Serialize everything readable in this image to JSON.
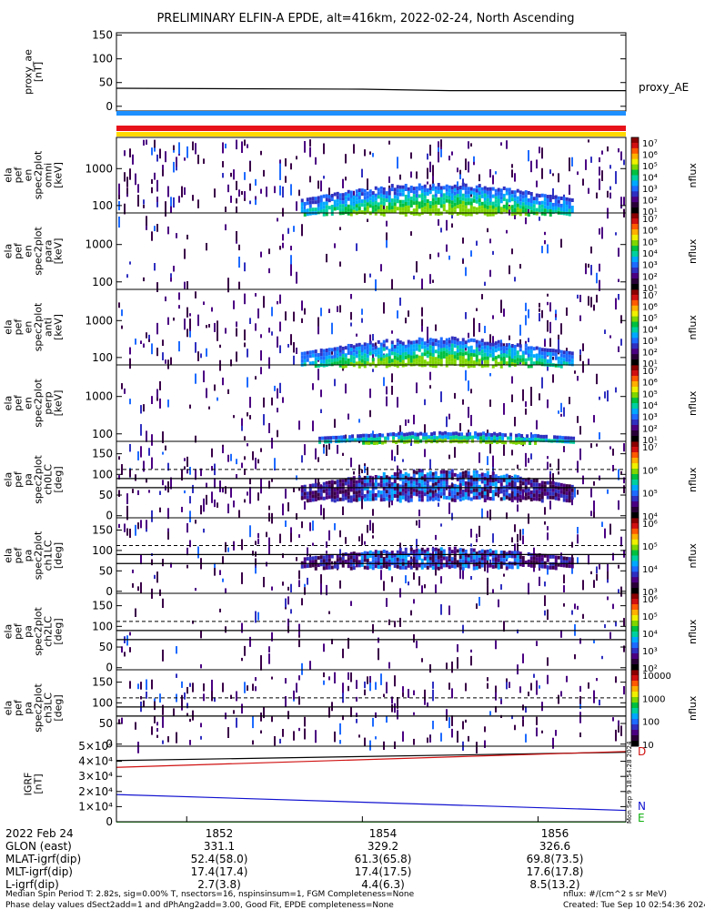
{
  "title": "PRELIMINARY ELFIN-A EPDE, alt=416km, 2022-02-24, North Ascending",
  "colors": {
    "blue_bar": "#1e90ff",
    "red_bar": "#e8121a",
    "yellow_bar": "#ffd800",
    "igrf_black": "#000000",
    "igrf_red": "#d01010",
    "igrf_blue": "#1010d0",
    "igrf_green": "#10b010"
  },
  "chart_data": {
    "type": "heatmap",
    "x_time_range": [
      "18:51.2",
      "18:57.0"
    ],
    "panels": [
      {
        "id": "proxy_ae",
        "type": "line",
        "ylabel": [
          "proxy_ae",
          "[nT]"
        ],
        "yticks": [
          "150",
          "100",
          "50",
          "0"
        ],
        "tick_values": [
          150,
          100,
          50,
          0
        ],
        "ylim": [
          -10,
          155
        ],
        "series": [
          {
            "name": "proxy_AE",
            "x": [
              18.512,
              18.54,
              18.55,
              18.57
            ],
            "y": [
              38,
              36,
              33,
              33
            ]
          }
        ]
      },
      {
        "id": "pef_en_1",
        "type": "heatmap",
        "scale": "log",
        "ylabel": [
          "ela",
          "pef",
          "en",
          "spec2plot",
          "omni",
          "[keV]"
        ],
        "yticks": [
          "1000",
          "100"
        ],
        "tick_values": [
          1000,
          100
        ],
        "ylim": [
          63,
          7000
        ],
        "colorbar": {
          "label": "nflux",
          "ticks": [
            "10⁷",
            "10⁶",
            "10⁵",
            "10⁴",
            "10³",
            "10²",
            "10¹"
          ]
        },
        "intensity_band": {
          "start": "18:53.3",
          "end": "18:56.4",
          "energy_keV": [
            63,
            450
          ]
        }
      },
      {
        "id": "pef_en_2",
        "type": "heatmap",
        "scale": "log",
        "ylabel": [
          "ela",
          "pef",
          "en",
          "spec2plot",
          "para",
          "[keV]"
        ],
        "yticks": [
          "1000",
          "100"
        ],
        "tick_values": [
          1000,
          100
        ],
        "ylim": [
          63,
          7000
        ],
        "colorbar": {
          "label": "nflux",
          "ticks": [
            "10⁷",
            "10⁶",
            "10⁵",
            "10⁴",
            "10³",
            "10²",
            "10¹"
          ]
        },
        "intensity_band": null
      },
      {
        "id": "pef_en_3",
        "type": "heatmap",
        "scale": "log",
        "ylabel": [
          "ela",
          "pef",
          "en",
          "spec2plot",
          "anti",
          "[keV]"
        ],
        "yticks": [
          "1000",
          "100"
        ],
        "tick_values": [
          1000,
          100
        ],
        "ylim": [
          63,
          7000
        ],
        "colorbar": {
          "label": "nflux",
          "ticks": [
            "10⁷",
            "10⁶",
            "10⁵",
            "10⁴",
            "10³",
            "10²",
            "10¹"
          ]
        },
        "intensity_band": {
          "start": "18:53.3",
          "end": "18:56.4",
          "energy_keV": [
            63,
            380
          ]
        }
      },
      {
        "id": "pef_en_4",
        "type": "heatmap",
        "scale": "log",
        "ylabel": [
          "ela",
          "pef",
          "en",
          "spec2plot",
          "perp",
          "[keV]"
        ],
        "yticks": [
          "1000",
          "100"
        ],
        "tick_values": [
          1000,
          100
        ],
        "ylim": [
          63,
          7000
        ],
        "colorbar": {
          "label": "nflux",
          "ticks": [
            "10⁷",
            "10⁶",
            "10⁵",
            "10⁴",
            "10³",
            "10²",
            "10¹"
          ]
        },
        "intensity_band": {
          "start": "18:53.5",
          "end": "18:56.4",
          "energy_keV": [
            63,
            120
          ]
        }
      },
      {
        "id": "pa_ch0",
        "type": "heatmap",
        "ylabel": [
          "ela",
          "pef",
          "pa",
          "spec2plot",
          "ch0LC",
          "[deg]"
        ],
        "yticks": [
          "150",
          "100",
          "50",
          "0"
        ],
        "tick_values": [
          150,
          100,
          50,
          0
        ],
        "ylim": [
          -5,
          180
        ],
        "lines": {
          "solid": [
            90,
            68
          ],
          "dashed": 112
        },
        "colorbar": {
          "label": "nflux",
          "ticks": [
            "10⁷",
            "10⁶",
            "10⁵",
            "10⁴"
          ]
        },
        "intensity_band": {
          "start": "18:53.3",
          "end": "18:56.4",
          "pa_deg": [
            40,
            115
          ]
        }
      },
      {
        "id": "pa_ch1",
        "type": "heatmap",
        "ylabel": [
          "ela",
          "pef",
          "pa",
          "spec2plot",
          "ch1LC",
          "[deg]"
        ],
        "yticks": [
          "150",
          "100",
          "50",
          "0"
        ],
        "tick_values": [
          150,
          100,
          50,
          0
        ],
        "ylim": [
          -5,
          180
        ],
        "lines": {
          "solid": [
            90,
            68
          ],
          "dashed": 112
        },
        "colorbar": {
          "label": "nflux",
          "ticks": [
            "10⁶",
            "10⁵",
            "10⁴",
            "10³"
          ]
        },
        "intensity_band": {
          "start": "18:53.3",
          "end": "18:56.4",
          "pa_deg": [
            60,
            110
          ]
        }
      },
      {
        "id": "pa_ch2",
        "type": "heatmap",
        "ylabel": [
          "ela",
          "pef",
          "pa",
          "spec2plot",
          "ch2LC",
          "[deg]"
        ],
        "yticks": [
          "150",
          "100",
          "50",
          "0"
        ],
        "tick_values": [
          150,
          100,
          50,
          0
        ],
        "ylim": [
          -5,
          180
        ],
        "lines": {
          "solid": [
            90,
            68
          ],
          "dashed": 112
        },
        "colorbar": {
          "label": "nflux",
          "ticks": [
            "10⁶",
            "10⁵",
            "10⁴",
            "10³",
            "10²"
          ]
        },
        "intensity_band": null
      },
      {
        "id": "pa_ch3",
        "type": "heatmap",
        "ylabel": [
          "ela",
          "pef",
          "pa",
          "spec2plot",
          "ch3LC",
          "[deg]"
        ],
        "yticks": [
          "150",
          "100",
          "50",
          "0"
        ],
        "tick_values": [
          150,
          100,
          50,
          0
        ],
        "ylim": [
          -5,
          180
        ],
        "lines": {
          "solid": [
            90,
            68
          ],
          "dashed": 112
        },
        "colorbar": {
          "label": "nflux",
          "ticks": [
            "10000",
            "1000",
            "100",
            "10"
          ]
        },
        "intensity_band": null
      },
      {
        "id": "igrf",
        "type": "line",
        "ylabel": [
          "IGRF",
          "[nT]"
        ],
        "yticks": [
          "5×10⁴",
          "4×10⁴",
          "3×10⁴",
          "2×10⁴",
          "1×10⁴",
          "0"
        ],
        "tick_values": [
          50000,
          40000,
          30000,
          20000,
          10000,
          0
        ],
        "ylim": [
          0,
          50000
        ],
        "series": [
          {
            "name": "D",
            "x": [
              18.512,
              18.57
            ],
            "y": [
              40500,
              46000
            ]
          },
          {
            "name": "",
            "x": [
              18.512,
              18.57
            ],
            "y": [
              36000,
              46500
            ]
          },
          {
            "name": "N",
            "x": [
              18.512,
              18.57
            ],
            "y": [
              18000,
              7500
            ]
          },
          {
            "name": "E",
            "x": [
              18.512,
              18.57
            ],
            "y": [
              -200,
              -200
            ]
          }
        ],
        "legend": [
          "D",
          "N",
          "E"
        ]
      }
    ],
    "x_ticks": [
      "1852",
      "1854",
      "1856"
    ]
  },
  "bottom_rows": {
    "labels": [
      "2022 Feb 24",
      "GLON (east)",
      "MLAT-igrf(dip)",
      "MLT-igrf(dip)",
      "L-igrf(dip)"
    ],
    "columns": [
      [
        "1852",
        "331.1",
        "52.4(58.0)",
        "17.4(17.4)",
        "2.7(3.8)"
      ],
      [
        "1854",
        "329.2",
        "61.3(65.8)",
        "17.4(17.5)",
        "4.4(6.3)"
      ],
      [
        "1856",
        "326.6",
        "69.8(73.5)",
        "17.6(17.8)",
        "8.5(13.2)"
      ]
    ]
  },
  "footer": {
    "line1_left": "Median Spin Period T: 2.82s, sig=0.00% T, nsectors=16, nspinsinsum=1, FGM Completeness=None",
    "line2_left": "Phase delay values dSect2add=1 and dPhAng2add=3.00, Good Fit, EPDE completeness=None",
    "line1_right": "nflux: #/(cm^2 s sr MeV)",
    "line2_right": "Created: Tue Sep 10 02:54:36 2024",
    "rotated_stamp": "Mon Sep 9 18:54:28 2024"
  }
}
